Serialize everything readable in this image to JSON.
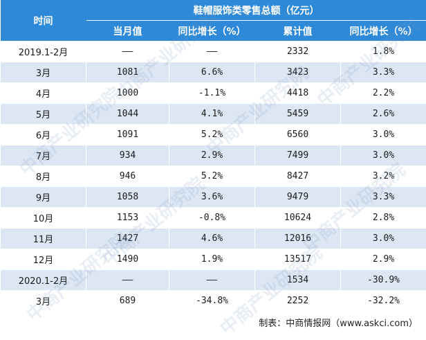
{
  "header": {
    "time_label": "时间",
    "group_label": "鞋帽服饰类零售总额（亿元）",
    "columns": [
      "当月值",
      "同比增长（%）",
      "累计值",
      "同比增长（%）"
    ]
  },
  "rows": [
    {
      "label": "2019.1-2月",
      "monthly": "——",
      "monthly_yoy": "——",
      "cumulative": "2332",
      "cumulative_yoy": "1.8%"
    },
    {
      "label": "3月",
      "monthly": "1081",
      "monthly_yoy": "6.6%",
      "cumulative": "3423",
      "cumulative_yoy": "3.3%"
    },
    {
      "label": "4月",
      "monthly": "1000",
      "monthly_yoy": "-1.1%",
      "cumulative": "4418",
      "cumulative_yoy": "2.2%"
    },
    {
      "label": "5月",
      "monthly": "1044",
      "monthly_yoy": "4.1%",
      "cumulative": "5459",
      "cumulative_yoy": "2.6%"
    },
    {
      "label": "6月",
      "monthly": "1091",
      "monthly_yoy": "5.2%",
      "cumulative": "6560",
      "cumulative_yoy": "3.0%"
    },
    {
      "label": "7月",
      "monthly": "934",
      "monthly_yoy": "2.9%",
      "cumulative": "7499",
      "cumulative_yoy": "3.0%"
    },
    {
      "label": "8月",
      "monthly": "946",
      "monthly_yoy": "5.2%",
      "cumulative": "8427",
      "cumulative_yoy": "3.2%"
    },
    {
      "label": "9月",
      "monthly": "1058",
      "monthly_yoy": "3.6%",
      "cumulative": "9479",
      "cumulative_yoy": "3.3%"
    },
    {
      "label": "10月",
      "monthly": "1153",
      "monthly_yoy": "-0.8%",
      "cumulative": "10624",
      "cumulative_yoy": "2.8%"
    },
    {
      "label": "11月",
      "monthly": "1427",
      "monthly_yoy": "4.6%",
      "cumulative": "12016",
      "cumulative_yoy": "3.0%"
    },
    {
      "label": "12月",
      "monthly": "1490",
      "monthly_yoy": "1.9%",
      "cumulative": "13517",
      "cumulative_yoy": "2.9%"
    },
    {
      "label": "2020.1-2月",
      "monthly": "——",
      "monthly_yoy": "——",
      "cumulative": "1534",
      "cumulative_yoy": "-30.9%"
    },
    {
      "label": "3月",
      "monthly": "689",
      "monthly_yoy": "-34.8%",
      "cumulative": "2252",
      "cumulative_yoy": "-32.2%"
    }
  ],
  "footer": {
    "source": "制表：中商情报网（www.askci.com）"
  },
  "watermark": "中商产业研究院",
  "colors": {
    "header_bg": "#2e8ad8",
    "stripe": "#dde6f3"
  }
}
